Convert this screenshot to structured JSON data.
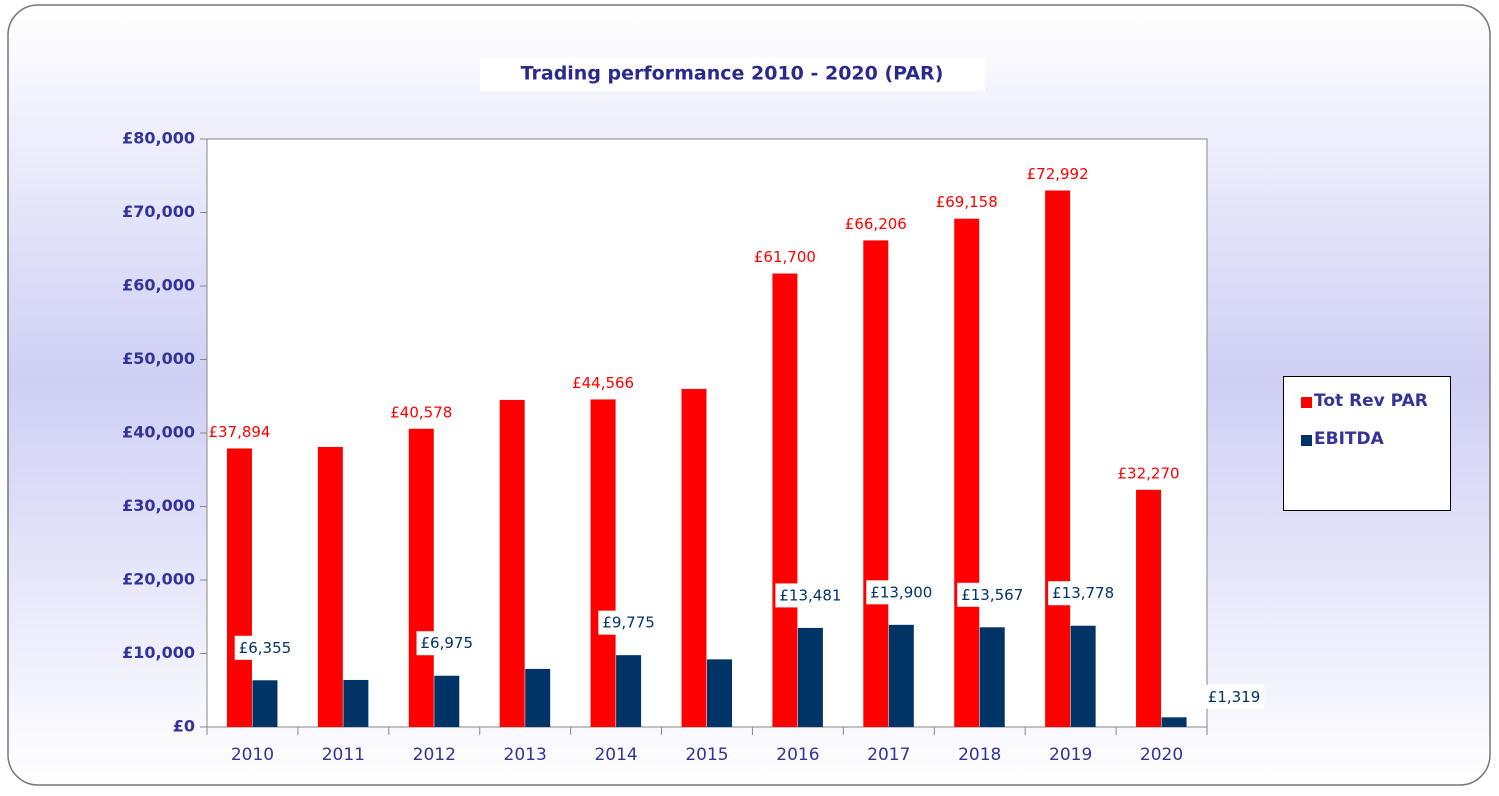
{
  "chart_data": {
    "type": "bar",
    "title": "Trading performance 2010 - 2020 (PAR)",
    "categories": [
      "2010",
      "2011",
      "2012",
      "2013",
      "2014",
      "2015",
      "2016",
      "2017",
      "2018",
      "2019",
      "2020"
    ],
    "series": [
      {
        "name": "Tot Rev PAR",
        "color": "#ff0000",
        "values": [
          37894,
          38100,
          40578,
          44500,
          44566,
          46000,
          61700,
          66206,
          69158,
          72992,
          32270
        ],
        "value_labels": [
          "£37,894",
          null,
          "£40,578",
          null,
          "£44,566",
          null,
          "£61,700",
          "£66,206",
          "£69,158",
          "£72,992",
          "£32,270"
        ]
      },
      {
        "name": "EBITDA",
        "color": "#003366",
        "values": [
          6355,
          6400,
          6975,
          7900,
          9775,
          9200,
          13481,
          13900,
          13567,
          13778,
          1319
        ],
        "value_labels": [
          "£6,355",
          null,
          "£6,975",
          null,
          "£9,775",
          null,
          "£13,481",
          "£13,900",
          "£13,567",
          "£13,778",
          "£1,319"
        ]
      }
    ],
    "ylim": [
      0,
      80000
    ],
    "yticks": [
      {
        "value": 0,
        "label": "£0"
      },
      {
        "value": 10000,
        "label": "£10,000"
      },
      {
        "value": 20000,
        "label": "£20,000"
      },
      {
        "value": 30000,
        "label": "£30,000"
      },
      {
        "value": 40000,
        "label": "£40,000"
      },
      {
        "value": 50000,
        "label": "£50,000"
      },
      {
        "value": 60000,
        "label": "£60,000"
      },
      {
        "value": 70000,
        "label": "£70,000"
      },
      {
        "value": 80000,
        "label": "£80,000"
      }
    ],
    "legend": "right"
  }
}
